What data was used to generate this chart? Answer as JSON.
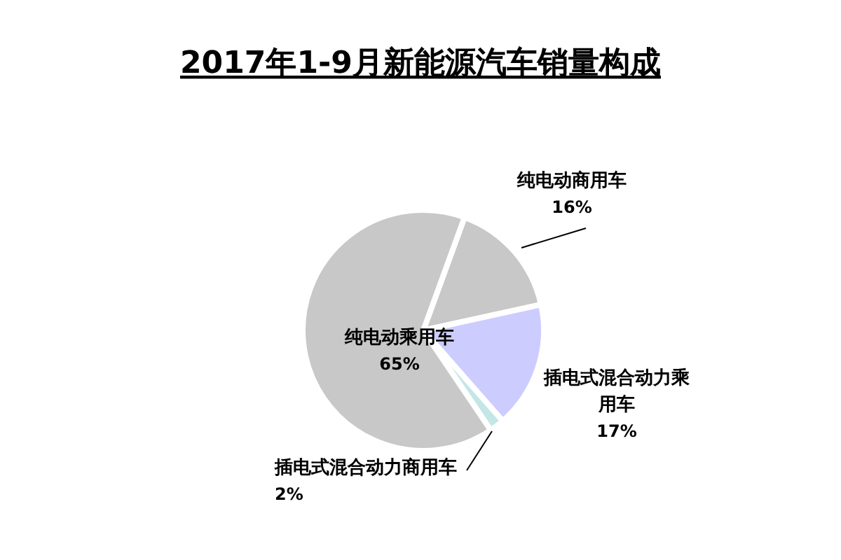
{
  "chart_data": {
    "type": "pie",
    "title": "2017年1-9月新能源汽车销量构成",
    "categories": [
      "纯电动商用车",
      "插电式混合动力乘用车",
      "插电式混合动力商用车",
      "纯电动乘用车"
    ],
    "values": [
      16,
      17,
      2,
      65
    ],
    "value_labels": [
      "16%",
      "17%",
      "2%",
      "65%"
    ],
    "colors": [
      "#c8c8c8",
      "#ccccff",
      "#c4e6e6",
      "#c8c8c8"
    ]
  }
}
